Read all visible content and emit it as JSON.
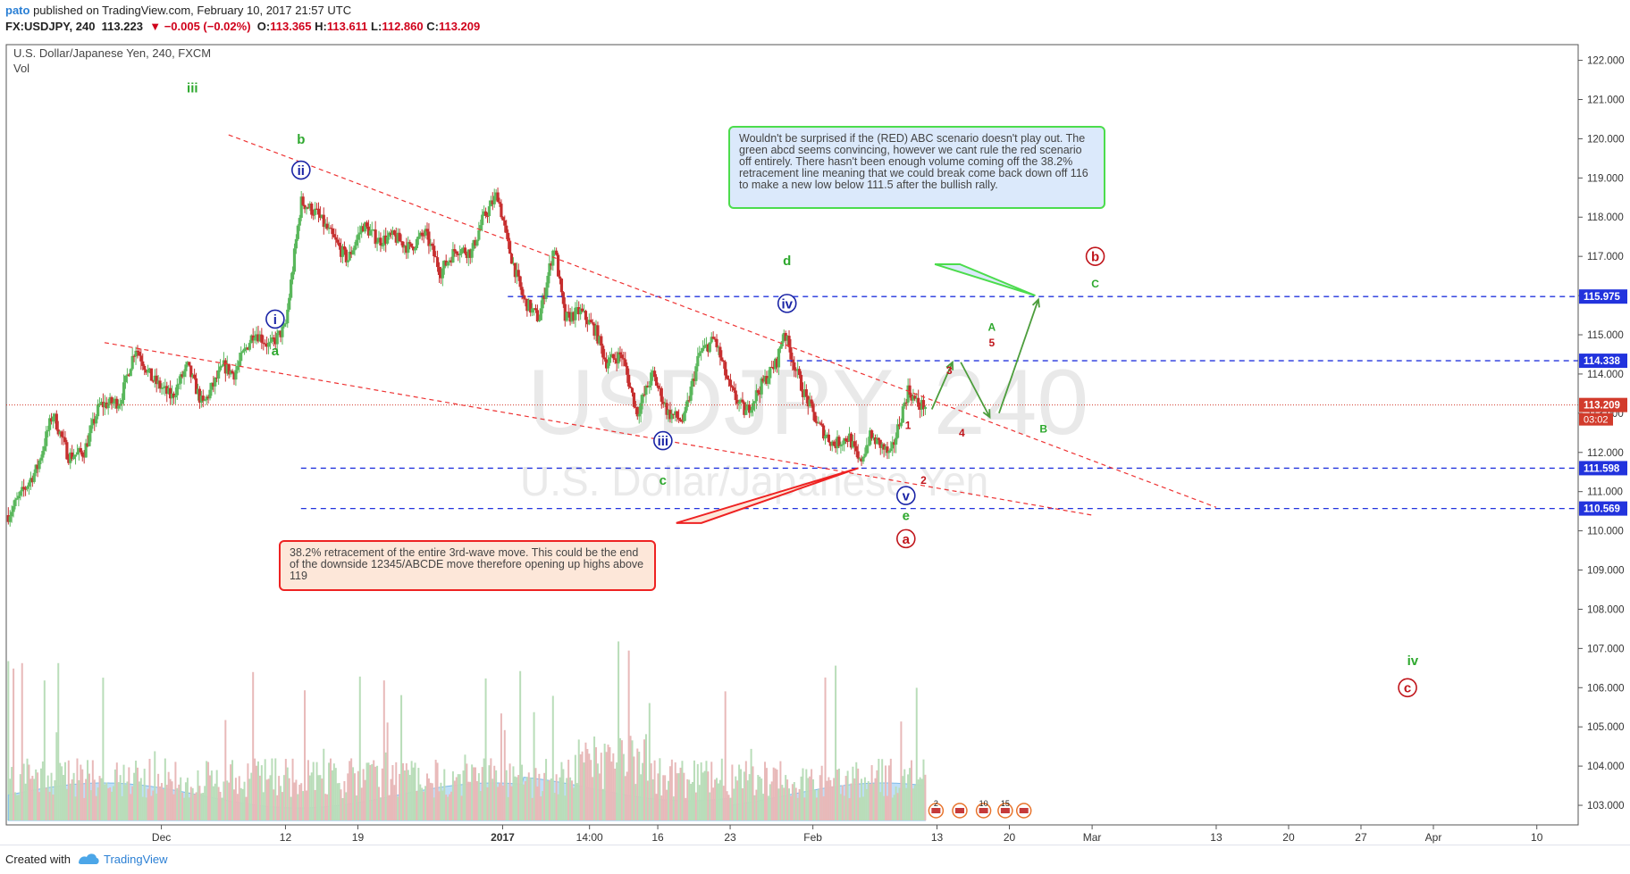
{
  "header": {
    "author": "pato",
    "published": " published on TradingView.com, February 10, 2017 21:57 UTC",
    "symbol": "FX:USDJPY, 240",
    "last": "113.223",
    "arrow": "▼",
    "change": "−0.005 (−0.02%)",
    "o_label": "O:",
    "o": "113.365",
    "h_label": "H:",
    "h": "113.611",
    "l_label": "L:",
    "l": "112.860",
    "c_label": "C:",
    "c": "113.209"
  },
  "legend": {
    "title": "U.S. Dollar/Japanese Yen, 240, FXCM",
    "vol": "Vol"
  },
  "watermark": {
    "symbol": "USDJPY, 240",
    "name": "U.S. Dollar/Japanese Yen"
  },
  "footer": {
    "created": "Created with",
    "brand": "TradingView"
  },
  "colors": {
    "up": "#5ab75c",
    "down": "#c62f2f",
    "vol_area": "#a9d4f5",
    "trend": "#ee3333",
    "level": "#2233dd",
    "wave_blue": "#1a24a6",
    "wave_green": "#2ea82e",
    "wave_red": "#c0151b",
    "price_tag": "#d23b2c",
    "level_tag": "#2233dd"
  },
  "chart_data": {
    "type": "candlestick",
    "title": "U.S. Dollar/Japanese Yen, 240, FXCM",
    "ylim": [
      102.5,
      122.4
    ],
    "y_ticks": [
      "103.000",
      "104.000",
      "105.000",
      "106.000",
      "107.000",
      "108.000",
      "109.000",
      "110.000",
      "111.000",
      "112.000",
      "113.000",
      "114.000",
      "115.000",
      "116.000",
      "117.000",
      "118.000",
      "119.000",
      "120.000",
      "121.000",
      "122.000"
    ],
    "x_labels": [
      {
        "label": "Dec",
        "day": 15
      },
      {
        "label": "12",
        "day": 27
      },
      {
        "label": "19",
        "day": 34
      },
      {
        "label": "2017",
        "day": 48
      },
      {
        "label": "14:00",
        "day": 56.4
      },
      {
        "label": "16",
        "day": 63
      },
      {
        "label": "23",
        "day": 70
      },
      {
        "label": "Feb",
        "day": 78
      },
      {
        "label": "13",
        "day": 90
      },
      {
        "label": "20",
        "day": 97
      },
      {
        "label": "Mar",
        "day": 105
      },
      {
        "label": "13",
        "day": 117
      },
      {
        "label": "20",
        "day": 124
      },
      {
        "label": "27",
        "day": 131
      },
      {
        "label": "Apr",
        "day": 138
      },
      {
        "label": "10",
        "day": 148
      }
    ],
    "x_days": [
      0,
      152
    ],
    "current_price": "113.209",
    "countdown": "03:02",
    "price_path": [
      [
        0.2,
        110.4
      ],
      [
        3,
        111.6
      ],
      [
        4.5,
        113.0
      ],
      [
        6,
        111.9
      ],
      [
        7.5,
        112.0
      ],
      [
        9,
        113.2
      ],
      [
        11,
        113.3
      ],
      [
        12.5,
        114.7
      ],
      [
        14,
        113.9
      ],
      [
        16,
        113.4
      ],
      [
        17.5,
        114.2
      ],
      [
        19,
        113.2
      ],
      [
        21,
        114.2
      ],
      [
        22,
        114.0
      ],
      [
        24,
        115.1
      ],
      [
        25.5,
        114.7
      ],
      [
        27,
        115.2
      ],
      [
        28.5,
        118.4
      ],
      [
        30,
        118.1
      ],
      [
        31.5,
        117.5
      ],
      [
        33,
        116.9
      ],
      [
        34.5,
        117.8
      ],
      [
        36,
        117.4
      ],
      [
        37.5,
        117.5
      ],
      [
        39,
        117.2
      ],
      [
        40.5,
        117.6
      ],
      [
        42,
        116.6
      ],
      [
        43.5,
        117.2
      ],
      [
        45,
        117.1
      ],
      [
        46,
        117.9
      ],
      [
        47.5,
        118.6
      ],
      [
        48.5,
        117.3
      ],
      [
        50,
        115.9
      ],
      [
        51.5,
        115.4
      ],
      [
        53,
        117.3
      ],
      [
        54,
        115.4
      ],
      [
        55.5,
        115.6
      ],
      [
        57,
        115.1
      ],
      [
        58,
        114.3
      ],
      [
        59.5,
        114.5
      ],
      [
        61,
        113.0
      ],
      [
        62.5,
        114.0
      ],
      [
        64,
        113.0
      ],
      [
        65.5,
        112.8
      ],
      [
        67,
        114.5
      ],
      [
        68.5,
        114.9
      ],
      [
        70,
        113.6
      ],
      [
        71.5,
        113.0
      ],
      [
        73,
        113.7
      ],
      [
        74.5,
        114.3
      ],
      [
        75.2,
        115.1
      ],
      [
        76,
        114.4
      ],
      [
        77,
        113.6
      ],
      [
        78.5,
        112.7
      ],
      [
        80,
        112.2
      ],
      [
        81.5,
        112.4
      ],
      [
        82.5,
        111.7
      ],
      [
        83.5,
        112.4
      ],
      [
        84.5,
        112.2
      ],
      [
        85.5,
        111.9
      ],
      [
        86.3,
        112.7
      ],
      [
        87.2,
        113.6
      ],
      [
        88.2,
        113.2
      ],
      [
        89,
        113.2
      ]
    ],
    "levels": [
      {
        "value": 115.975,
        "label": "115.975",
        "day_start": 48.5
      },
      {
        "value": 114.338,
        "label": "114.338",
        "day_start": 75.5
      },
      {
        "value": 111.598,
        "label": "111.598",
        "day_start": 28.5
      },
      {
        "value": 110.569,
        "label": "110.569",
        "day_start": 28.5
      }
    ],
    "trendlines": [
      {
        "from": [
          21.5,
          120.1
        ],
        "to": [
          117,
          110.6
        ]
      },
      {
        "from": [
          9.5,
          114.8
        ],
        "to": [
          105,
          110.4
        ]
      }
    ],
    "arrows": [
      {
        "from": [
          89.5,
          113.1
        ],
        "to": [
          91.5,
          114.3
        ]
      },
      {
        "from": [
          92.3,
          114.3
        ],
        "to": [
          95.1,
          112.9
        ]
      },
      {
        "from": [
          96,
          113.0
        ],
        "to": [
          99.8,
          115.9
        ]
      }
    ],
    "pointers": [
      {
        "from": [
          66,
          110.2
        ],
        "to": [
          82.4,
          111.6
        ],
        "color": "#ee2222"
      },
      {
        "from": [
          91,
          116.8
        ],
        "to": [
          99.5,
          116.0
        ],
        "color": "#4cdc4c"
      }
    ],
    "wave_labels": [
      {
        "text": "iii",
        "day": 18,
        "price": 121.3,
        "color": "green",
        "style": "plain"
      },
      {
        "text": "b",
        "day": 28.5,
        "price": 120.0,
        "color": "green",
        "style": "plain"
      },
      {
        "text": "ii",
        "day": 28.5,
        "price": 119.2,
        "color": "blue",
        "style": "circle"
      },
      {
        "text": "i",
        "day": 26,
        "price": 115.4,
        "color": "blue",
        "style": "circle"
      },
      {
        "text": "a",
        "day": 26,
        "price": 114.6,
        "color": "green",
        "style": "plain"
      },
      {
        "text": "d",
        "day": 75.5,
        "price": 116.9,
        "color": "green",
        "style": "plain"
      },
      {
        "text": "iv",
        "day": 75.5,
        "price": 115.8,
        "color": "blue",
        "style": "circle"
      },
      {
        "text": "iii",
        "day": 63.5,
        "price": 112.3,
        "color": "blue",
        "style": "circle"
      },
      {
        "text": "c",
        "day": 63.5,
        "price": 111.3,
        "color": "green",
        "style": "plain"
      },
      {
        "text": "v",
        "day": 87,
        "price": 110.9,
        "color": "blue",
        "style": "circle"
      },
      {
        "text": "e",
        "day": 87,
        "price": 110.4,
        "color": "green",
        "style": "plain"
      },
      {
        "text": "a",
        "day": 87,
        "price": 109.8,
        "color": "red",
        "style": "circle"
      },
      {
        "text": "b",
        "day": 105.3,
        "price": 117.0,
        "color": "red",
        "style": "circle"
      },
      {
        "text": "c",
        "day": 135.5,
        "price": 106.0,
        "color": "red",
        "style": "circle"
      },
      {
        "text": "iv",
        "day": 136,
        "price": 106.7,
        "color": "green",
        "style": "plain"
      },
      {
        "text": "A",
        "day": 95.3,
        "price": 115.2,
        "color": "green",
        "style": "small"
      },
      {
        "text": "5",
        "day": 95.3,
        "price": 114.8,
        "color": "red",
        "style": "small"
      },
      {
        "text": "B",
        "day": 100.3,
        "price": 112.6,
        "color": "green",
        "style": "small"
      },
      {
        "text": "C",
        "day": 105.3,
        "price": 116.3,
        "color": "green",
        "style": "small"
      },
      {
        "text": "1",
        "day": 87.2,
        "price": 112.7,
        "color": "red",
        "style": "small"
      },
      {
        "text": "2",
        "day": 88.7,
        "price": 111.3,
        "color": "red",
        "style": "small"
      },
      {
        "text": "3",
        "day": 91.2,
        "price": 114.1,
        "color": "red",
        "style": "small"
      },
      {
        "text": "4",
        "day": 92.4,
        "price": 112.5,
        "color": "red",
        "style": "small"
      }
    ],
    "annotations": [
      {
        "id": "green",
        "text": "Wouldn't be surprised if the (RED) ABC scenario doesn't play out. The green abcd seems convincing, however we cant rule the red scenario off entirely. There hasn't been enough volume coming off the 38.2% retracement line meaning that we could break come back down off 116 to make a new low below 111.5 after the bullish rally."
      },
      {
        "id": "red",
        "text": "38.2% retracement of the entire 3rd-wave move. This could be the end of the downside 12345/ABCDE move therefore opening up highs above 119"
      }
    ],
    "events": [
      "2",
      "10",
      "15"
    ]
  }
}
